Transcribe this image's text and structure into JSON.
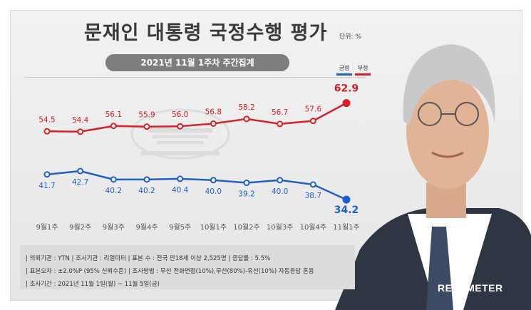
{
  "header": {
    "title": "문재인 대통령 국정수행 평가",
    "unit": "단위: %",
    "subtitle": "2021년 11월 1주차 주간집계"
  },
  "legend": {
    "positive": "긍정",
    "negative": "부정"
  },
  "colors": {
    "positive": "#1f5fc9",
    "negative": "#d61f26",
    "panel": "#ececec",
    "subtitle_bar": "#7d7d7d"
  },
  "chart_data": {
    "type": "line",
    "categories": [
      "9월1주",
      "9월2주",
      "9월3주",
      "9월4주",
      "9월5주",
      "10월1주",
      "10월2주",
      "10월3주",
      "10월4주",
      "11월1주"
    ],
    "series": [
      {
        "name": "부정",
        "values": [
          54.5,
          54.4,
          56.1,
          55.9,
          56.0,
          56.8,
          58.2,
          56.7,
          57.6,
          62.9
        ]
      },
      {
        "name": "긍정",
        "values": [
          41.7,
          42.7,
          40.2,
          40.2,
          40.4,
          40.0,
          39.2,
          40.0,
          38.7,
          34.2
        ]
      }
    ],
    "ylim": [
      30,
      66
    ],
    "grid": false,
    "legend_placement": "top-right"
  },
  "footer": {
    "line1": "| 의뢰기관 : YTN   | 조사기관 : 리얼미터   | 표본 수 : 전국 만18세 이상 2,525명   | 응답률 : 5.5%",
    "line2": "| 표본오차 : ±2.0%P (95% 신뢰수준)   | 조사방법 : 무선 전화면접(10%),무선(80%)-유선(10%) 자동응답 혼용",
    "line3": "| 조사기간 : 2021년 11월 1일(월) ~ 11월 5일(금)"
  },
  "brand": "REALMETER"
}
